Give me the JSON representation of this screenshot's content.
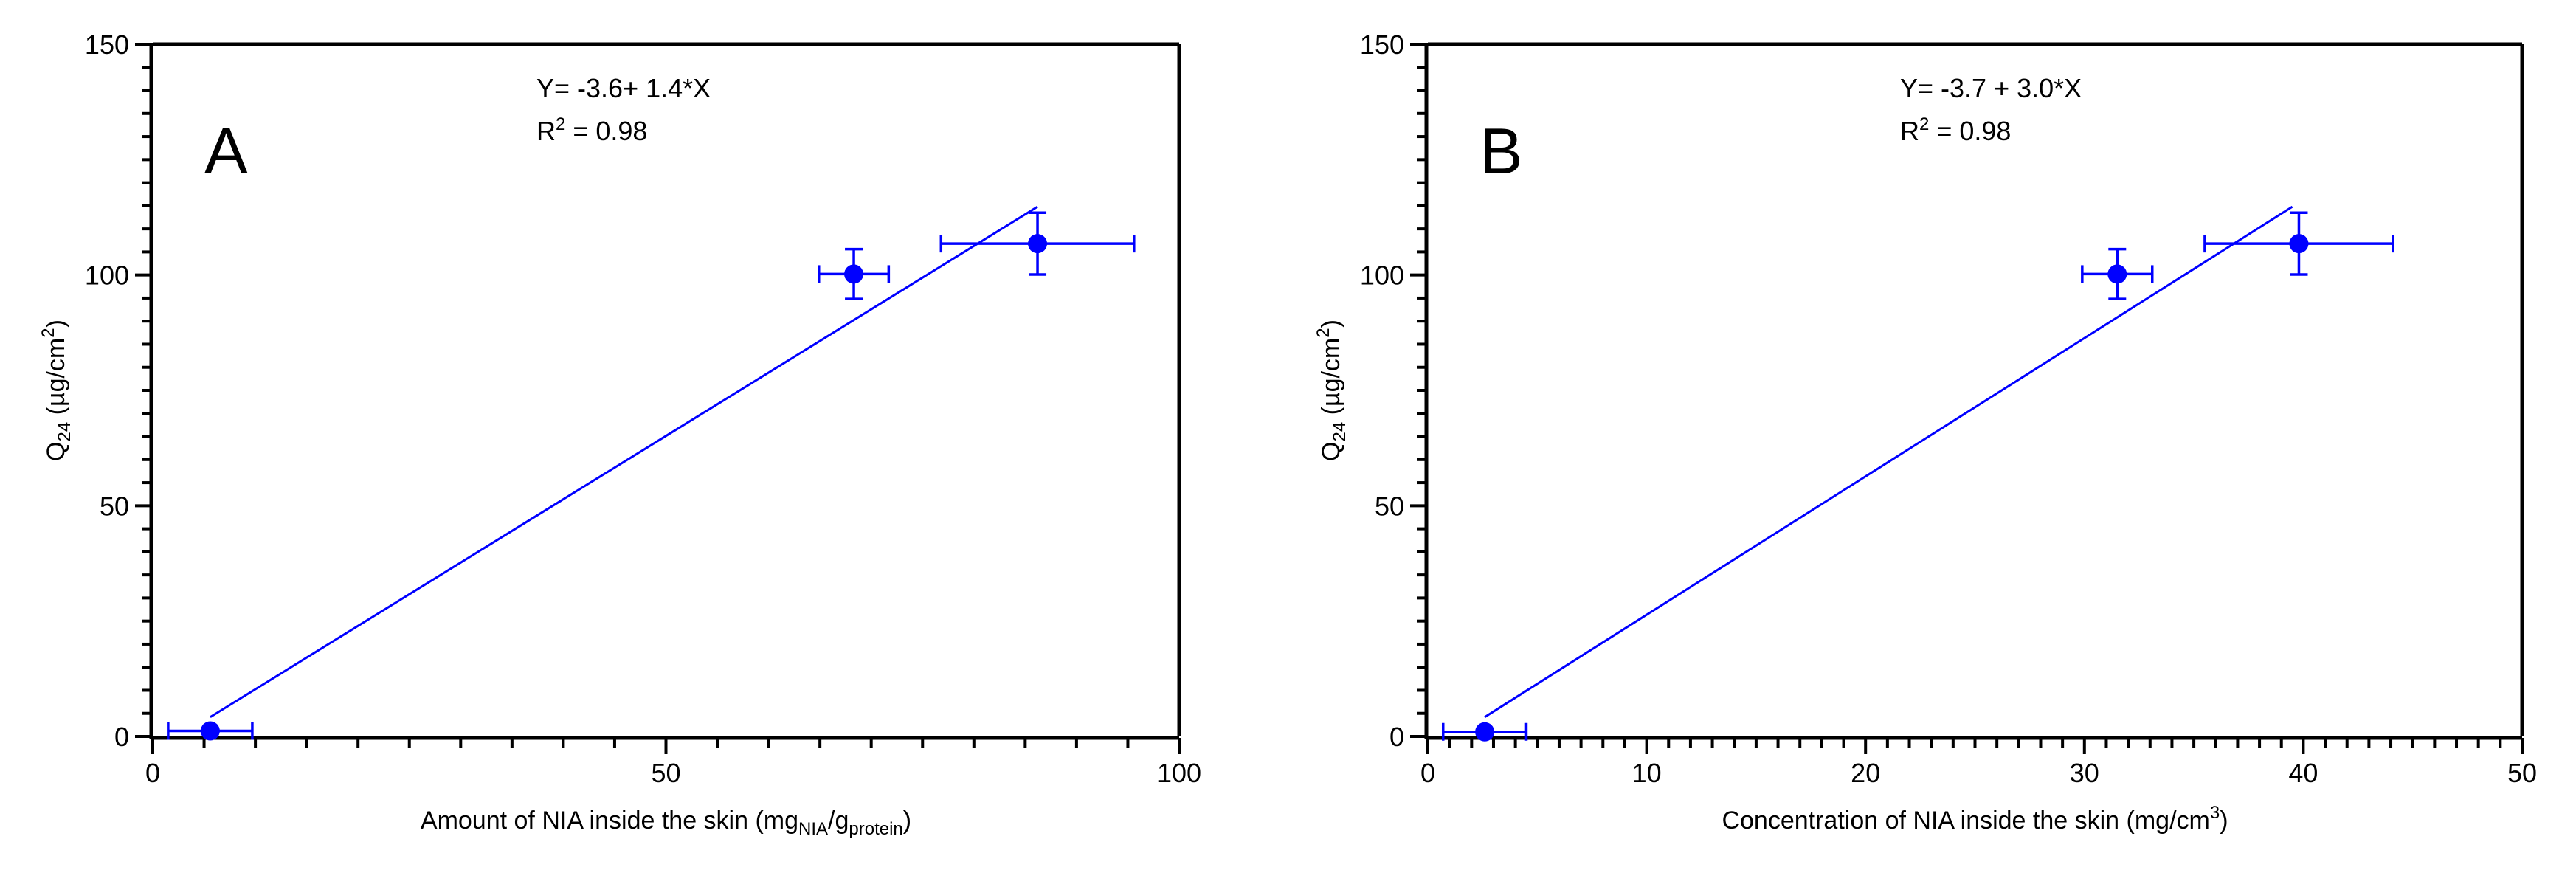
{
  "chart_data": [
    {
      "type": "scatter",
      "panel_label": "A",
      "equation": "Y= -3.6+ 1.4*X",
      "r2_prefix": "R",
      "r2_sup": "2",
      "r2_value": " = 0.98",
      "xlim": [
        0,
        100
      ],
      "ylim": [
        0,
        150
      ],
      "x_major_ticks": [
        0,
        50,
        100
      ],
      "x_tick_labels": [
        "0",
        "50",
        "100"
      ],
      "x_minor_step": 5,
      "y_major_ticks": [
        0,
        50,
        100,
        150
      ],
      "y_tick_labels": [
        "0",
        "50",
        "100",
        "150"
      ],
      "y_minor_step": 5,
      "xlabel": {
        "pre": "Amount of NIA inside the skin (mg",
        "sub1": "NIA",
        "mid": "/g",
        "sub2": "protein",
        "post": ")"
      },
      "ylabel": {
        "pre": "Q",
        "sub": "24",
        "mid": " (µg/cm",
        "sup": "2",
        "post": ")"
      },
      "points": [
        {
          "x": 5.6,
          "y": 1.2,
          "xerr": 4.1,
          "yerr": 0
        },
        {
          "x": 68.3,
          "y": 100.2,
          "xerr": 3.4,
          "yerr": 5.4
        },
        {
          "x": 86.2,
          "y": 106.8,
          "xerr": 9.4,
          "yerr": 6.7
        }
      ],
      "fit_line": {
        "x": [
          5.6,
          86.2
        ],
        "y": [
          4.2,
          114.8
        ]
      },
      "color": "#0000ff"
    },
    {
      "type": "scatter",
      "panel_label": "B",
      "equation": "Y= -3.7 + 3.0*X",
      "r2_prefix": "R",
      "r2_sup": "2",
      "r2_value": " = 0.98",
      "xlim": [
        0,
        50
      ],
      "ylim": [
        0,
        150
      ],
      "x_major_ticks": [
        0,
        10,
        20,
        30,
        40,
        50
      ],
      "x_tick_labels": [
        "0",
        "10",
        "20",
        "30",
        "40",
        "50"
      ],
      "x_minor_step": 1,
      "y_major_ticks": [
        0,
        50,
        100,
        150
      ],
      "y_tick_labels": [
        "0",
        "50",
        "100",
        "150"
      ],
      "y_minor_step": 5,
      "xlabel": {
        "pre": "Concentration of NIA inside the skin (mg/cm",
        "sup": "3",
        "post": ")"
      },
      "ylabel": {
        "pre": "Q",
        "sub": "24",
        "mid": " (µg/cm",
        "sup": "2",
        "post": ")"
      },
      "points": [
        {
          "x": 2.6,
          "y": 1.0,
          "xerr": 1.9,
          "yerr": 0
        },
        {
          "x": 31.5,
          "y": 100.2,
          "xerr": 1.6,
          "yerr": 5.4
        },
        {
          "x": 39.8,
          "y": 106.8,
          "xerr": 4.3,
          "yerr": 6.7
        }
      ],
      "fit_line": {
        "x": [
          2.6,
          39.5
        ],
        "y": [
          4.2,
          114.8
        ]
      },
      "color": "#0000ff"
    }
  ]
}
